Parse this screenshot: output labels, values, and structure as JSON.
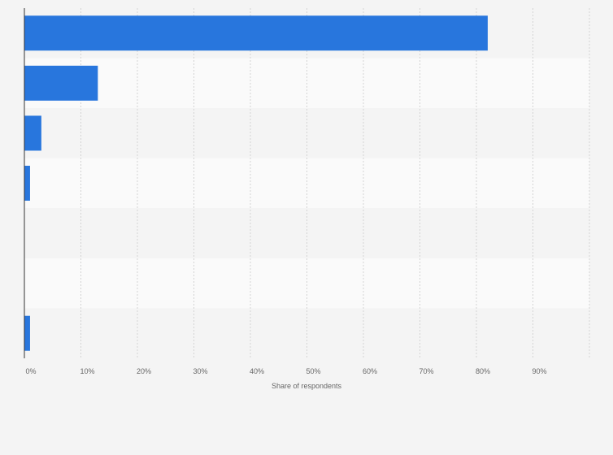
{
  "chart_data": {
    "type": "bar",
    "orientation": "horizontal",
    "categories": [
      "",
      "",
      "",
      "",
      "",
      "",
      ""
    ],
    "values": [
      82,
      13,
      3,
      1,
      0,
      0,
      1
    ],
    "xlabel": "Share of respondents",
    "ylabel": "",
    "xlim": [
      0,
      100
    ],
    "tick_values": [
      0,
      10,
      20,
      30,
      40,
      50,
      60,
      70,
      80,
      90
    ],
    "tick_labels": [
      "0%",
      "10%",
      "20%",
      "30%",
      "40%",
      "50%",
      "60%",
      "70%",
      "80%",
      "90%"
    ],
    "grid": true,
    "legend": "none",
    "colors": {
      "bar": "#2876dd",
      "row_band_light": "#fafafa",
      "row_band_dark": "#f4f4f4",
      "gridline": "#d4d4d4",
      "axis": "#333333",
      "text": "#666666"
    }
  }
}
